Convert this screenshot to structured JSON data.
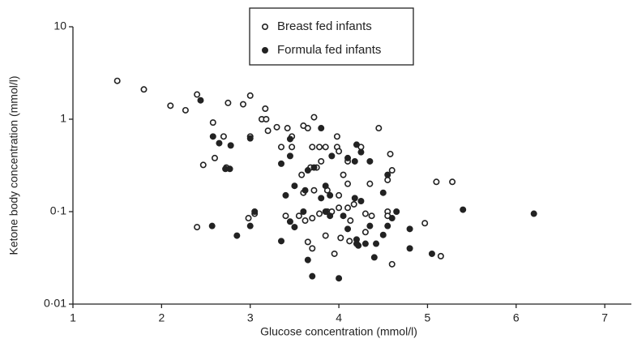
{
  "chart_data": {
    "type": "scatter",
    "x_label": "Glucose concentration (mmol/l)",
    "y_label": "Ketone body concentration (mmol/l)",
    "xlim": [
      1,
      7.3
    ],
    "xticks": [
      1,
      2,
      3,
      4,
      5,
      6,
      7
    ],
    "ylim": [
      0.01,
      10
    ],
    "ylog": true,
    "yticks": [
      {
        "value": 0.01,
        "label": "0·01"
      },
      {
        "value": 0.1,
        "label": "0·1"
      },
      1,
      10
    ],
    "grid": false,
    "legend": "top",
    "series": [
      {
        "name": "Breast fed infants",
        "color": "#222222",
        "marker": "open",
        "x": [
          1.5,
          1.8,
          2.1,
          2.27,
          2.4,
          2.75,
          2.92,
          3.0,
          3.17,
          3.13,
          3.18,
          2.58,
          2.7,
          2.6,
          2.47,
          2.73,
          3.0,
          3.2,
          3.3,
          3.42,
          3.35,
          3.47,
          3.47,
          3.6,
          3.65,
          3.72,
          3.7,
          3.78,
          3.85,
          3.8,
          3.75,
          3.68,
          3.58,
          3.98,
          3.98,
          4.0,
          4.1,
          4.25,
          4.45,
          4.58,
          4.55,
          4.6,
          4.35,
          4.05,
          4.1,
          4.0,
          3.87,
          3.72,
          3.6,
          2.4,
          2.98,
          3.05,
          3.4,
          3.55,
          3.62,
          3.7,
          3.78,
          3.87,
          3.92,
          4.0,
          4.1,
          4.17,
          4.13,
          4.3,
          4.37,
          4.55,
          4.55,
          4.97,
          5.1,
          5.28,
          3.65,
          3.85,
          4.02,
          4.12,
          4.3,
          3.95,
          4.6,
          5.15,
          3.7
        ],
        "values": [
          2.6,
          2.1,
          1.4,
          1.25,
          1.85,
          1.5,
          1.45,
          1.8,
          1.3,
          1.0,
          1.0,
          0.92,
          0.65,
          0.38,
          0.32,
          0.3,
          0.65,
          0.75,
          0.82,
          0.8,
          0.5,
          0.5,
          0.65,
          0.85,
          0.8,
          1.05,
          0.5,
          0.5,
          0.5,
          0.35,
          0.3,
          0.3,
          0.25,
          0.65,
          0.5,
          0.45,
          0.35,
          0.5,
          0.8,
          0.42,
          0.22,
          0.28,
          0.2,
          0.25,
          0.2,
          0.15,
          0.17,
          0.17,
          0.16,
          0.068,
          0.085,
          0.095,
          0.09,
          0.09,
          0.08,
          0.085,
          0.095,
          0.1,
          0.1,
          0.11,
          0.11,
          0.12,
          0.08,
          0.095,
          0.09,
          0.1,
          0.09,
          0.075,
          0.21,
          0.21,
          0.047,
          0.055,
          0.052,
          0.048,
          0.06,
          0.035,
          0.027,
          0.033,
          0.04
        ]
      },
      {
        "name": "Formula fed infants",
        "color": "#222222",
        "marker": "filled",
        "x": [
          2.44,
          2.58,
          3.0,
          2.65,
          2.78,
          2.72,
          2.77,
          3.35,
          3.45,
          3.45,
          3.65,
          3.72,
          3.8,
          3.92,
          4.1,
          4.2,
          4.25,
          4.18,
          4.35,
          3.4,
          3.5,
          3.62,
          3.8,
          3.85,
          3.9,
          4.18,
          4.25,
          4.5,
          4.55,
          3.0,
          3.05,
          2.57,
          2.85,
          3.35,
          3.45,
          3.5,
          3.6,
          3.85,
          3.9,
          4.05,
          4.1,
          4.2,
          4.22,
          4.3,
          4.35,
          4.42,
          4.55,
          4.65,
          4.6,
          4.8,
          4.8,
          5.05,
          5.4,
          6.2,
          3.65,
          3.7,
          4.0,
          4.4,
          4.2,
          4.5
        ],
        "values": [
          1.6,
          0.65,
          0.62,
          0.55,
          0.52,
          0.29,
          0.29,
          0.33,
          0.61,
          0.4,
          0.28,
          0.3,
          0.8,
          0.4,
          0.38,
          0.53,
          0.44,
          0.35,
          0.35,
          0.15,
          0.19,
          0.17,
          0.14,
          0.19,
          0.15,
          0.14,
          0.13,
          0.16,
          0.25,
          0.07,
          0.1,
          0.07,
          0.055,
          0.048,
          0.078,
          0.068,
          0.1,
          0.1,
          0.09,
          0.09,
          0.065,
          0.05,
          0.043,
          0.045,
          0.07,
          0.045,
          0.07,
          0.1,
          0.085,
          0.065,
          0.04,
          0.035,
          0.105,
          0.095,
          0.03,
          0.02,
          0.019,
          0.032,
          0.045,
          0.056
        ]
      }
    ]
  }
}
